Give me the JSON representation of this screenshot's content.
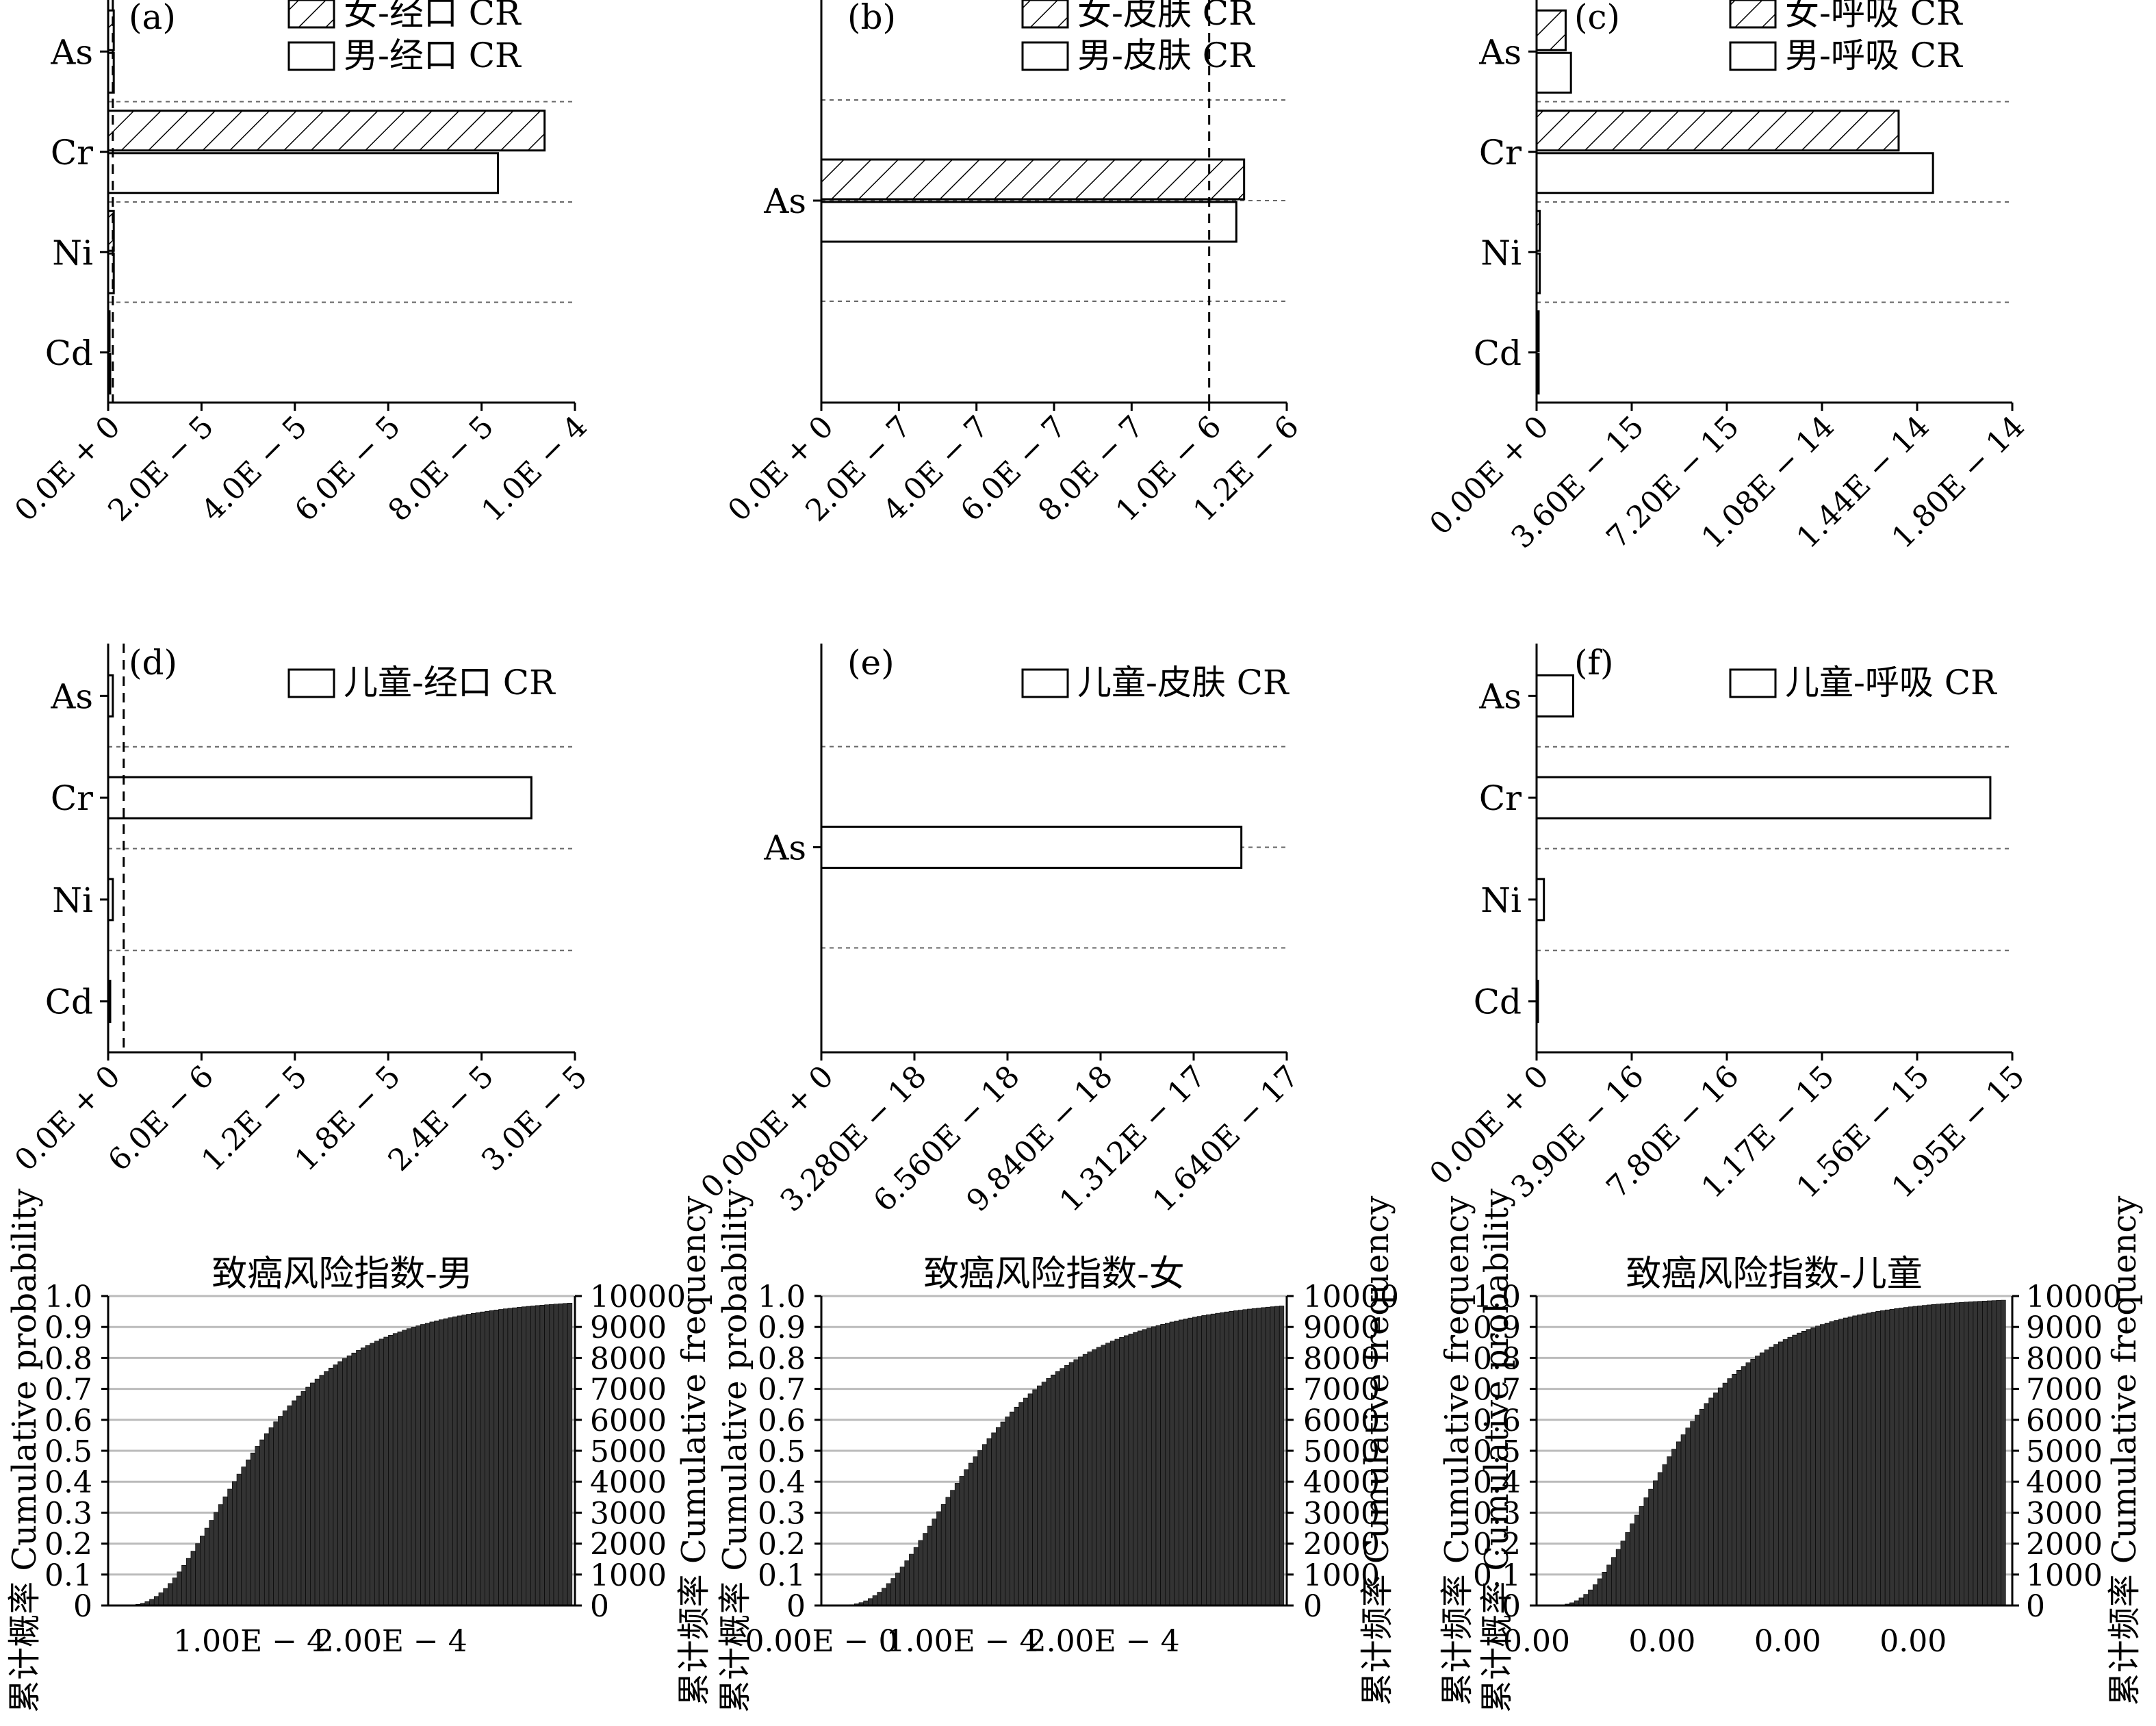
{
  "chart_data": [
    {
      "id": "a",
      "type": "bar",
      "orientation": "horizontal",
      "panel_label": "(a)",
      "categories": [
        "As",
        "Cr",
        "Ni",
        "Cd"
      ],
      "series": [
        {
          "name": "女-经口 CR",
          "pattern": "hatched",
          "values": [
            1.2e-06,
            9.35e-05,
            1.2e-06,
            0.0
          ]
        },
        {
          "name": "男-经口 CR",
          "pattern": "plain",
          "values": [
            1.2e-06,
            8.35e-05,
            1.2e-06,
            1e-07
          ]
        }
      ],
      "xlim": [
        0,
        0.0001
      ],
      "xticks": [
        0,
        2e-05,
        4e-05,
        6e-05,
        8e-05,
        0.0001
      ],
      "xtick_labels": [
        "0.0E + 0",
        "2.0E − 5",
        "4.0E − 5",
        "6.0E − 5",
        "8.0E − 5",
        "1.0E − 4"
      ],
      "reference_line": 1e-06
    },
    {
      "id": "b",
      "type": "bar",
      "orientation": "horizontal",
      "panel_label": "(b)",
      "categories": [
        "As"
      ],
      "series": [
        {
          "name": "女-皮肤 CR",
          "pattern": "hatched",
          "values": [
            1.09e-06
          ]
        },
        {
          "name": "男-皮肤 CR",
          "pattern": "plain",
          "values": [
            1.07e-06
          ]
        }
      ],
      "xlim": [
        0,
        1.2e-06
      ],
      "xticks": [
        0,
        2e-07,
        4e-07,
        6e-07,
        8e-07,
        1e-06,
        1.2e-06
      ],
      "xtick_labels": [
        "0.0E + 0",
        "2.0E − 7",
        "4.0E − 7",
        "6.0E − 7",
        "8.0E − 7",
        "1.0E − 6",
        "1.2E − 6"
      ],
      "reference_line": 1e-06
    },
    {
      "id": "c",
      "type": "bar",
      "orientation": "horizontal",
      "panel_label": "(c)",
      "categories": [
        "As",
        "Cr",
        "Ni",
        "Cd"
      ],
      "series": [
        {
          "name": "女-呼吸 CR",
          "pattern": "hatched",
          "values": [
            1.1e-15,
            1.37e-14,
            1.2e-16,
            3e-17
          ]
        },
        {
          "name": "男-呼吸 CR",
          "pattern": "plain",
          "values": [
            1.3e-15,
            1.5e-14,
            1.2e-16,
            3e-17
          ]
        }
      ],
      "xlim": [
        0,
        1.8e-14
      ],
      "xticks": [
        0,
        3.6e-15,
        7.2e-15,
        1.08e-14,
        1.44e-14,
        1.8e-14
      ],
      "xtick_labels": [
        "0.00E + 0",
        "3.60E − 15",
        "7.20E − 15",
        "1.08E − 14",
        "1.44E − 14",
        "1.80E − 14"
      ]
    },
    {
      "id": "d",
      "type": "bar",
      "orientation": "horizontal",
      "panel_label": "(d)",
      "categories": [
        "As",
        "Cr",
        "Ni",
        "Cd"
      ],
      "series": [
        {
          "name": "儿童-经口 CR",
          "pattern": "plain",
          "values": [
            3e-07,
            2.72e-05,
            3e-07,
            1e-07
          ]
        }
      ],
      "xlim": [
        0,
        3e-05
      ],
      "xticks": [
        0,
        6e-06,
        1.2e-05,
        1.8e-05,
        2.4e-05,
        3e-05
      ],
      "xtick_labels": [
        "0.0E + 0",
        "6.0E − 6",
        "1.2E − 5",
        "1.8E − 5",
        "2.4E − 5",
        "3.0E − 5"
      ],
      "reference_line": 1e-06
    },
    {
      "id": "e",
      "type": "bar",
      "orientation": "horizontal",
      "panel_label": "(e)",
      "categories": [
        "As"
      ],
      "series": [
        {
          "name": "儿童-皮肤 CR",
          "pattern": "plain",
          "values": [
            1.48e-17
          ]
        }
      ],
      "xlim": [
        0,
        1.64e-17
      ],
      "xticks": [
        0,
        3.28e-18,
        6.56e-18,
        9.84e-18,
        1.312e-17,
        1.64e-17
      ],
      "xtick_labels": [
        "0.000E + 0",
        "3.280E − 18",
        "6.560E − 18",
        "9.840E − 18",
        "1.312E − 17",
        "1.640E − 17"
      ]
    },
    {
      "id": "f",
      "type": "bar",
      "orientation": "horizontal",
      "panel_label": "(f)",
      "categories": [
        "As",
        "Cr",
        "Ni",
        "Cd"
      ],
      "series": [
        {
          "name": "儿童-呼吸 CR",
          "pattern": "plain",
          "values": [
            1.5e-16,
            1.86e-15,
            3e-17,
            0
          ]
        }
      ],
      "xlim": [
        0,
        1.95e-15
      ],
      "xticks": [
        0,
        3.9e-16,
        7.8e-16,
        1.17e-15,
        1.56e-15,
        1.95e-15
      ],
      "xtick_labels": [
        "0.00E + 0",
        "3.90E − 16",
        "7.80E − 16",
        "1.17E − 15",
        "1.56E − 15",
        "1.95E − 15"
      ]
    },
    {
      "id": "g",
      "type": "bar",
      "subtype": "cumulative-histogram",
      "title": "致癌风险指数-男",
      "ylabel_left": "累计概率 Cumulative probability",
      "ylabel_right": "累计频率 Cumulative frequency",
      "y_left_lim": [
        0,
        1.0
      ],
      "y_right_lim": [
        0,
        10000
      ],
      "y_left_ticks": [
        "0",
        "0.1",
        "0.2",
        "0.3",
        "0.4",
        "0.5",
        "0.6",
        "0.7",
        "0.8",
        "0.9",
        "1.0"
      ],
      "y_right_ticks": [
        "0",
        "1000",
        "2000",
        "3000",
        "4000",
        "5000",
        "6000",
        "7000",
        "8000",
        "9000",
        "10000"
      ],
      "xlim": [
        0,
        0.00033
      ],
      "xticks": [
        0.0001,
        0.0002
      ],
      "xtick_labels": [
        "1.00E − 4",
        "2.00E − 4"
      ],
      "curve": {
        "median": 0.000105,
        "spread": 0.57,
        "x_min": 3.3e-06,
        "x_max": 0.000328,
        "bins": 100
      }
    },
    {
      "id": "h",
      "type": "bar",
      "subtype": "cumulative-histogram",
      "title": "致癌风险指数-女",
      "ylabel_left": "累计概率 Cumulative probability",
      "ylabel_right": "累计频率 Cumulative frequency",
      "y_left_lim": [
        0,
        1.0
      ],
      "y_right_lim": [
        0,
        10000
      ],
      "y_left_ticks": [
        "0",
        "0.1",
        "0.2",
        "0.3",
        "0.4",
        "0.5",
        "0.6",
        "0.7",
        "0.8",
        "0.9",
        "1.0"
      ],
      "y_right_ticks": [
        "0",
        "1000",
        "2000",
        "3000",
        "4000",
        "5000",
        "6000",
        "7000",
        "8000",
        "9000",
        "10000"
      ],
      "xlim": [
        0,
        0.00033
      ],
      "xticks": [
        0,
        0.0001,
        0.0002
      ],
      "xtick_labels": [
        "0.00E − 0",
        "1.00E − 4",
        "2.00E − 4"
      ],
      "curve": {
        "median": 0.000114,
        "spread": 0.57,
        "x_min": 4e-06,
        "x_max": 0.000328,
        "bins": 100
      }
    },
    {
      "id": "i",
      "type": "bar",
      "subtype": "cumulative-histogram",
      "title": "致癌风险指数-儿童",
      "ylabel_left": "累计频率 Cumulative frequency",
      "ylabel_left2": "累计概率 Cumulative probability",
      "ylabel_right": "累计频率 Cumulative frequency",
      "y_left_lim": [
        0,
        1.0
      ],
      "y_right_lim": [
        0,
        10000
      ],
      "y_left_ticks": [
        "0",
        "0.1",
        "0.2",
        "0.3",
        "0.4",
        "0.5",
        "0.6",
        "0.7",
        "0.8",
        "0.9",
        "1.0"
      ],
      "y_right_ticks": [
        "0",
        "1000",
        "2000",
        "3000",
        "4000",
        "5000",
        "6000",
        "7000",
        "8000",
        "9000",
        "10000"
      ],
      "xlim": [
        0,
        3.6e-05
      ],
      "xticks": [
        0,
        9.5e-06,
        1.9e-05,
        2.85e-05
      ],
      "xtick_labels": [
        "0.00",
        "0.00",
        "0.00",
        "0.00"
      ],
      "curve": {
        "median": 1.05e-05,
        "spread": 0.55,
        "x_min": 4e-07,
        "x_max": 3.55e-05,
        "bins": 100
      }
    }
  ]
}
